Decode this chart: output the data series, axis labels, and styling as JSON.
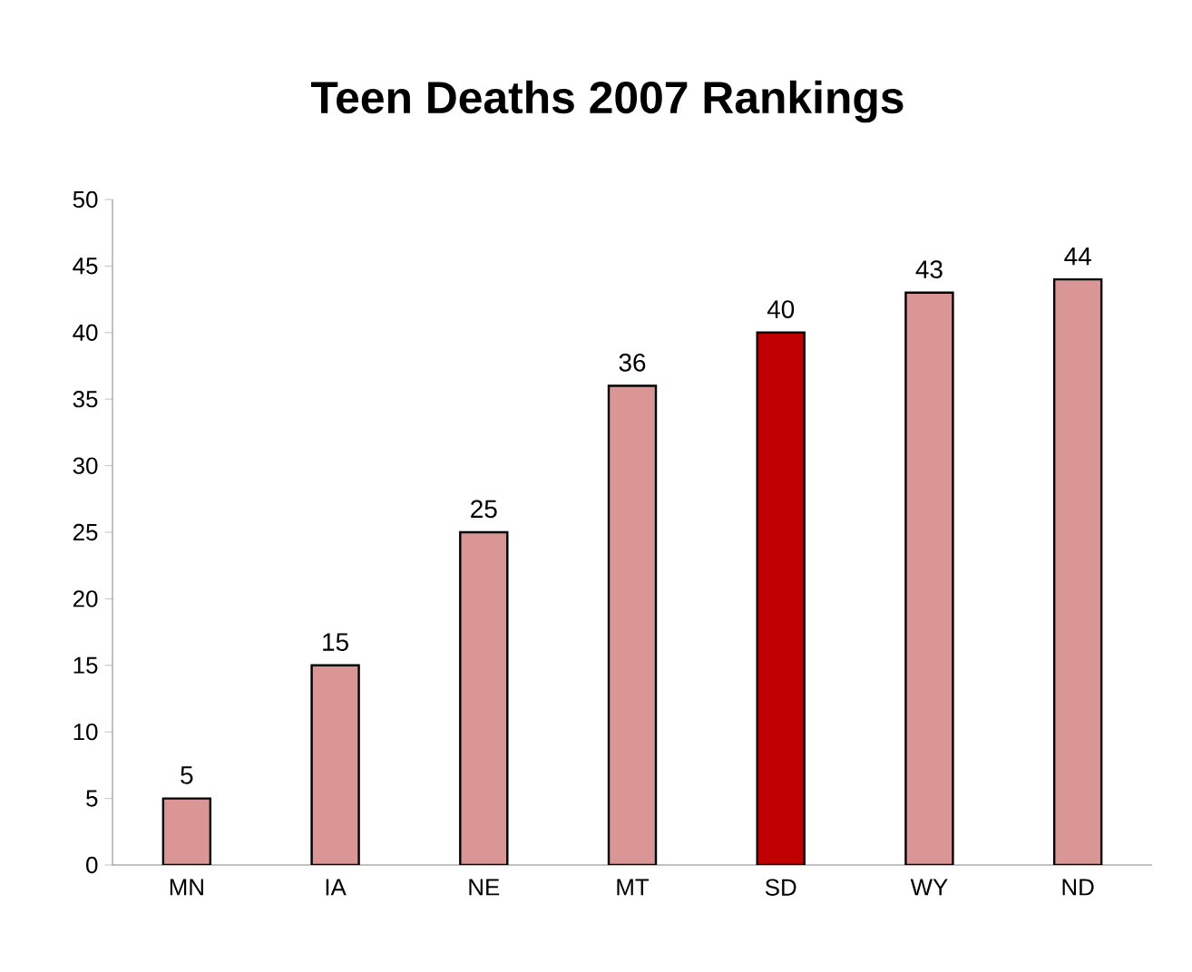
{
  "chart_data": {
    "type": "bar",
    "title": "Teen Deaths 2007 Rankings",
    "categories": [
      "MN",
      "IA",
      "NE",
      "MT",
      "SD",
      "WY",
      "ND"
    ],
    "values": [
      5,
      15,
      25,
      36,
      40,
      43,
      44
    ],
    "colors": [
      "#d99694",
      "#d99694",
      "#d99694",
      "#d99694",
      "#c00000",
      "#d99694",
      "#d99694"
    ],
    "ylim": [
      0,
      50
    ],
    "yticks": [
      0,
      5,
      10,
      15,
      20,
      25,
      30,
      35,
      40,
      45,
      50
    ],
    "data_labels": true
  }
}
